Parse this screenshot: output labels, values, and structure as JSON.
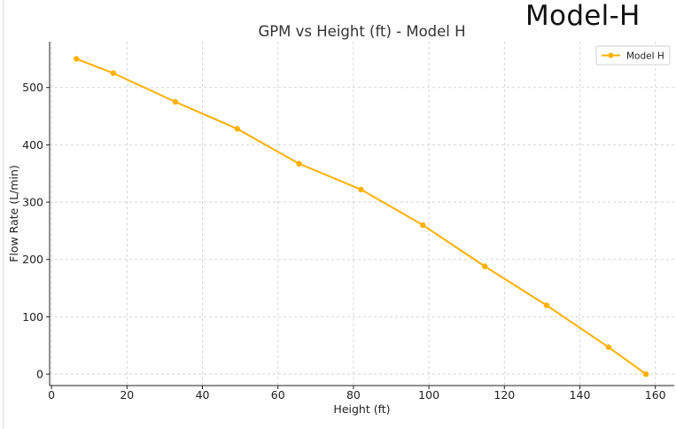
{
  "brand": {
    "text": "Model-H"
  },
  "colors": {
    "series": "#FFB000",
    "grid": "#cccccc",
    "axis": "#222222"
  },
  "chart_data": {
    "type": "line",
    "title": "GPM vs Height (ft) - Model H",
    "xlabel": "Height (ft)",
    "ylabel": "Flow Rate (L/min)",
    "xlim": [
      -0.5,
      165
    ],
    "ylim": [
      -20,
      580
    ],
    "xticks": [
      0,
      20,
      40,
      60,
      80,
      100,
      120,
      140,
      160
    ],
    "yticks": [
      0,
      100,
      200,
      300,
      400,
      500
    ],
    "grid": true,
    "legend_position": "top-right",
    "series": [
      {
        "name": "Model H",
        "color": "#FFB000",
        "x": [
          6.6,
          16.4,
          32.8,
          49.2,
          65.6,
          82.0,
          98.4,
          114.8,
          131.2,
          147.6,
          157.5
        ],
        "y": [
          550,
          525,
          475,
          428,
          367,
          322,
          260,
          188,
          120,
          47,
          0
        ]
      }
    ]
  }
}
